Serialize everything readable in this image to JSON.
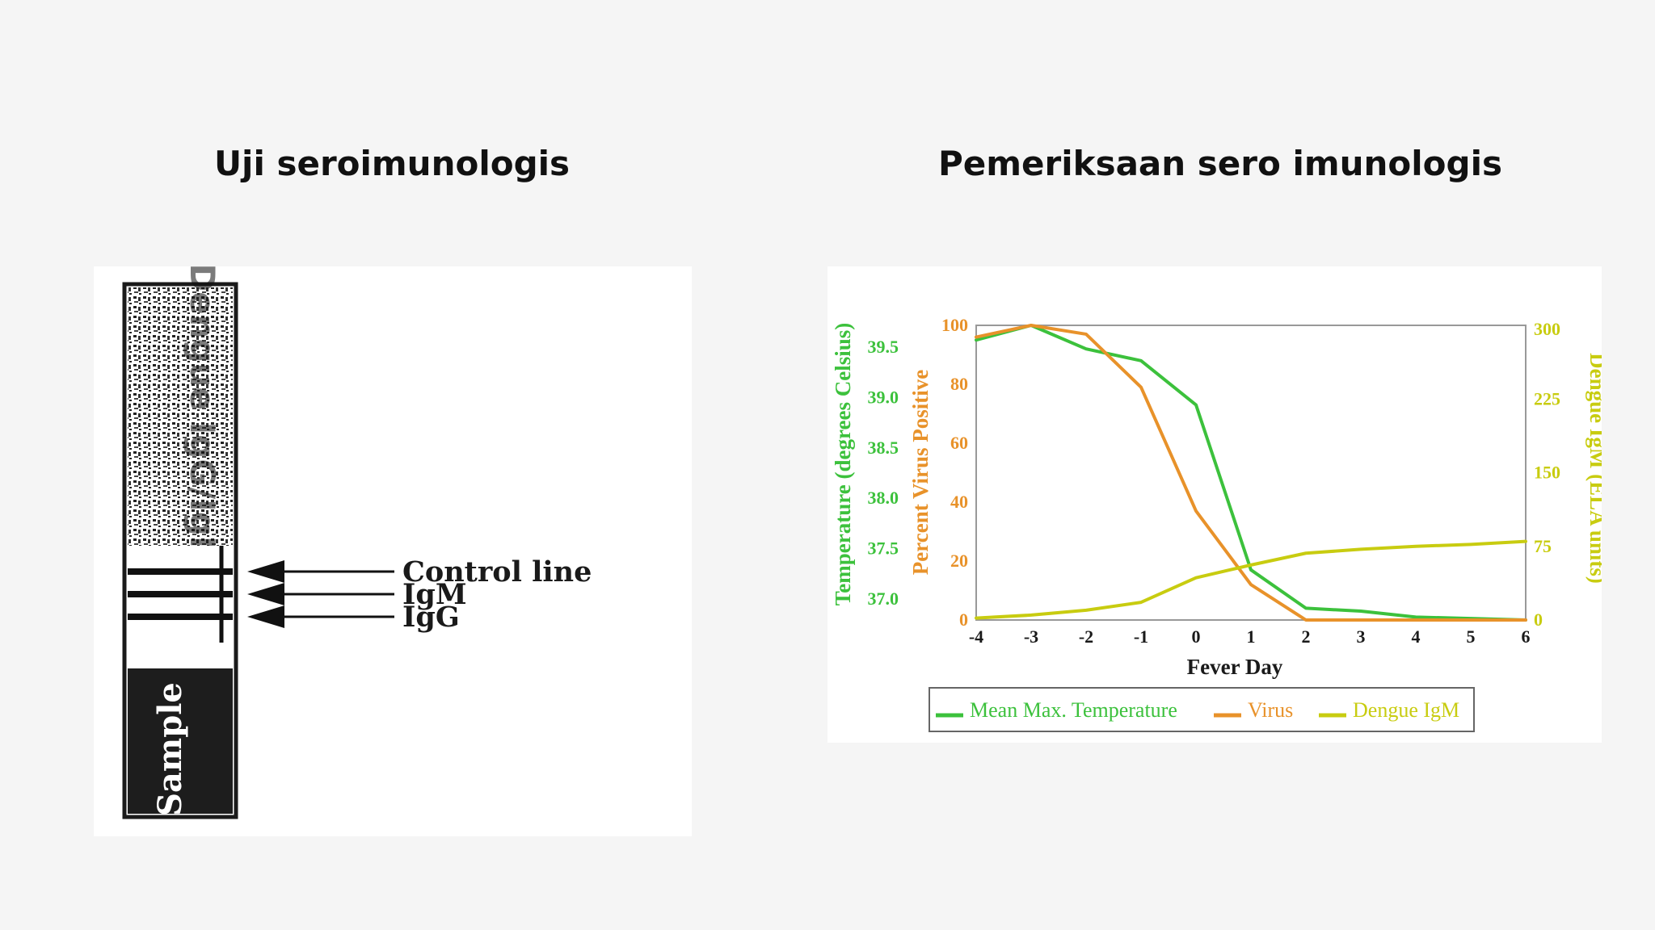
{
  "slide": {
    "left_title": "Uji seroimunologis",
    "right_title": "Pemeriksaan sero imunologis"
  },
  "strip": {
    "labels": [
      "Control line",
      "IgM",
      "IgG"
    ],
    "sample_label": "Sample",
    "side_text": "Dengue IgG/IgM"
  },
  "chart_data": {
    "type": "line",
    "xlabel": "Fever Day",
    "x": [
      -4,
      -3,
      -2,
      -1,
      0,
      1,
      2,
      3,
      4,
      5,
      6
    ],
    "y_axes": {
      "temperature": {
        "label": "Temperature (degrees Celsius)",
        "ticks": [
          "37.0",
          "37.5",
          "38.0",
          "38.5",
          "39.0",
          "39.5"
        ],
        "color": "#3cc13c",
        "side": "left-outer"
      },
      "virus": {
        "label": "Percent Virus Positive",
        "ticks": [
          "0",
          "20",
          "40",
          "60",
          "80",
          "100"
        ],
        "range": [
          0,
          100
        ],
        "color": "#e8922a",
        "side": "left-inner"
      },
      "igm": {
        "label": "Dengue IgM (ELA units)",
        "ticks": [
          "0",
          "75",
          "150",
          "225",
          "300"
        ],
        "range": [
          0,
          300
        ],
        "color": "#c8cc10",
        "side": "right"
      }
    },
    "series": [
      {
        "name": "Mean Max. Temperature",
        "axis": "virus",
        "color": "#3cc13c",
        "values": [
          95,
          100,
          92,
          88,
          73,
          17,
          4,
          3,
          1,
          0.5,
          0
        ]
      },
      {
        "name": "Virus",
        "axis": "virus",
        "color": "#e8922a",
        "values": [
          96,
          100,
          97,
          79,
          37,
          12,
          0,
          0,
          0,
          0,
          0
        ]
      },
      {
        "name": "Dengue IgM",
        "axis": "igm",
        "color": "#c8cc10",
        "values": [
          2,
          5,
          10,
          18,
          43,
          56,
          68,
          72,
          75,
          77,
          80
        ]
      }
    ],
    "legend": "bottom"
  }
}
